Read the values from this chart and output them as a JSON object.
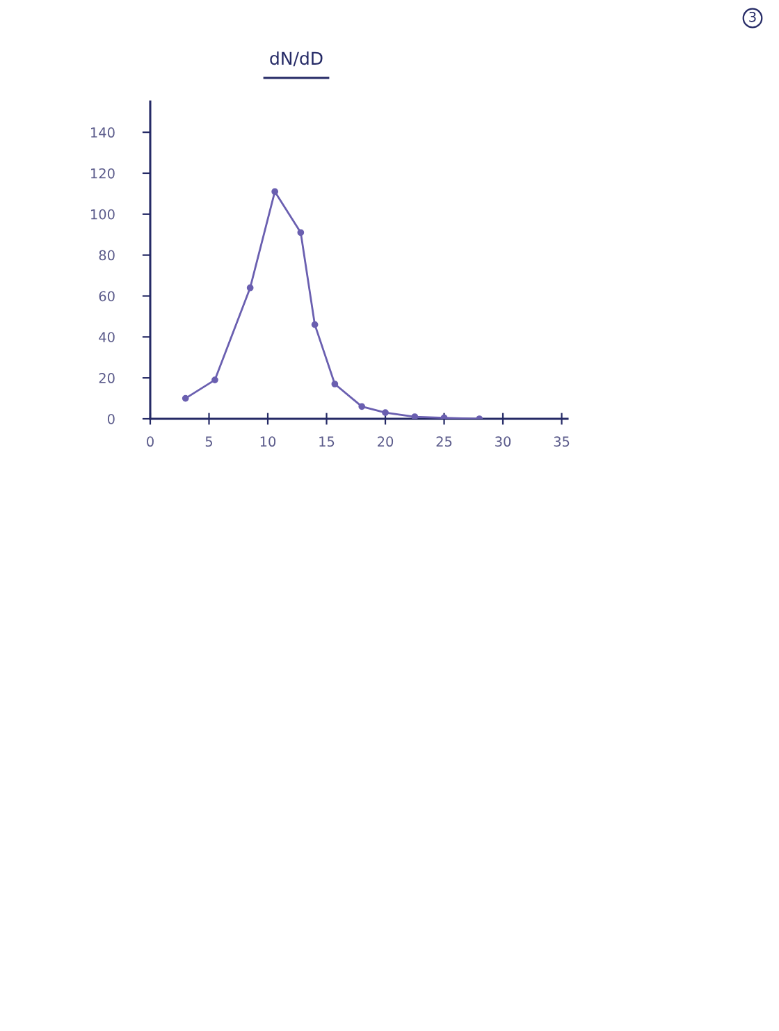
{
  "chart_data": {
    "type": "line",
    "title": "dN/dD",
    "x": [
      3,
      5.5,
      8.5,
      10.6,
      12.8,
      14,
      15.7,
      18,
      20,
      22.5,
      25,
      28
    ],
    "values": [
      10,
      19,
      64,
      111,
      91,
      46,
      17,
      6,
      3,
      1,
      0.5,
      0
    ],
    "color": "#6a5fb0",
    "marker": "circle",
    "line_style": "solid",
    "grid": false,
    "xlim": [
      0,
      35.5
    ],
    "ylim": [
      0,
      155
    ],
    "xticks": [
      0,
      5,
      10,
      15,
      20,
      25,
      30,
      35
    ],
    "yticks": [
      0,
      20,
      40,
      60,
      80,
      100,
      120,
      140
    ],
    "annotations": [
      "3"
    ]
  }
}
